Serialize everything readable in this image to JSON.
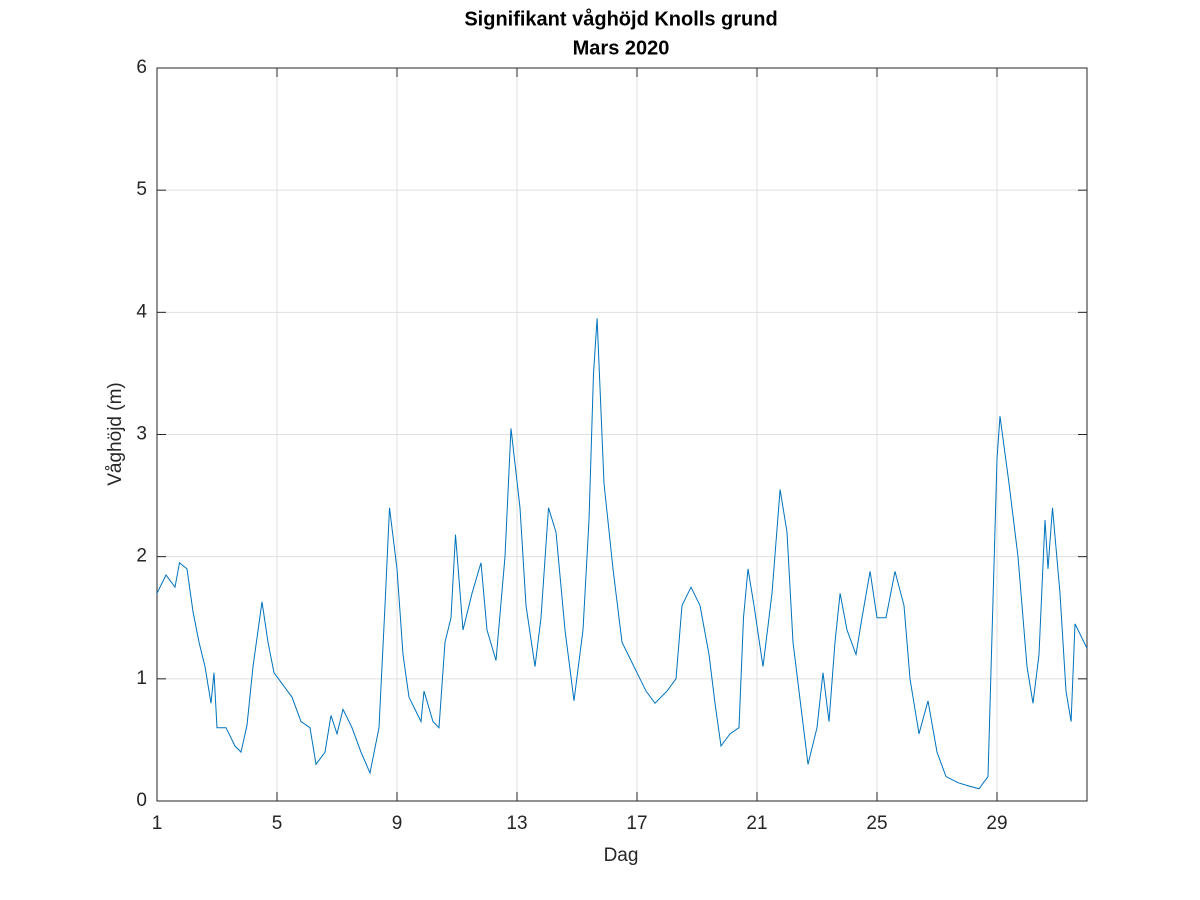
{
  "chart_data": {
    "type": "line",
    "title": "Signifikant våghöjd Knolls grund",
    "subtitle": "Mars 2020",
    "xlabel": "Dag",
    "ylabel": "Våghöjd (m)",
    "xlim": [
      1,
      32
    ],
    "xticks": [
      1,
      5,
      9,
      13,
      17,
      21,
      25,
      29
    ],
    "ylim": [
      0,
      6
    ],
    "yticks": [
      0,
      1,
      2,
      3,
      4,
      5,
      6
    ],
    "grid": true,
    "x": [
      1.0,
      1.3,
      1.6,
      1.75,
      2.0,
      2.2,
      2.4,
      2.6,
      2.8,
      2.9,
      3.0,
      3.3,
      3.6,
      3.8,
      4.0,
      4.2,
      4.5,
      4.7,
      4.9,
      5.2,
      5.5,
      5.8,
      6.1,
      6.3,
      6.6,
      6.8,
      7.0,
      7.2,
      7.5,
      7.8,
      8.1,
      8.4,
      8.6,
      8.75,
      9.0,
      9.2,
      9.4,
      9.6,
      9.8,
      9.9,
      10.2,
      10.4,
      10.6,
      10.8,
      10.95,
      11.2,
      11.5,
      11.8,
      12.0,
      12.3,
      12.6,
      12.8,
      13.1,
      13.3,
      13.6,
      13.8,
      14.05,
      14.3,
      14.6,
      14.9,
      15.2,
      15.4,
      15.55,
      15.67,
      15.9,
      16.2,
      16.5,
      16.9,
      17.3,
      17.6,
      18.0,
      18.3,
      18.5,
      18.8,
      19.1,
      19.4,
      19.6,
      19.8,
      20.1,
      20.4,
      20.55,
      20.7,
      20.9,
      21.2,
      21.5,
      21.77,
      22.0,
      22.2,
      22.5,
      22.7,
      23.0,
      23.2,
      23.4,
      23.6,
      23.77,
      24.0,
      24.3,
      24.5,
      24.77,
      25.0,
      25.3,
      25.6,
      25.9,
      26.1,
      26.4,
      26.7,
      27.0,
      27.3,
      27.7,
      28.1,
      28.4,
      28.7,
      28.85,
      29.0,
      29.1,
      29.4,
      29.7,
      30.0,
      30.2,
      30.4,
      30.6,
      30.7,
      30.85,
      31.1,
      31.3,
      31.47,
      31.6,
      32.0
    ],
    "series": [
      {
        "color": "#0072bd",
        "values": [
          1.7,
          1.85,
          1.75,
          1.95,
          1.9,
          1.55,
          1.3,
          1.1,
          0.8,
          1.05,
          0.6,
          0.6,
          0.45,
          0.4,
          0.62,
          1.1,
          1.63,
          1.3,
          1.05,
          0.95,
          0.85,
          0.65,
          0.6,
          0.3,
          0.4,
          0.7,
          0.55,
          0.75,
          0.6,
          0.4,
          0.23,
          0.6,
          1.6,
          2.4,
          1.9,
          1.2,
          0.85,
          0.75,
          0.65,
          0.9,
          0.65,
          0.6,
          1.3,
          1.5,
          2.18,
          1.4,
          1.7,
          1.95,
          1.4,
          1.15,
          2.0,
          3.05,
          2.4,
          1.6,
          1.1,
          1.5,
          2.4,
          2.2,
          1.4,
          0.82,
          1.4,
          2.3,
          3.5,
          3.95,
          2.6,
          1.9,
          1.3,
          1.1,
          0.9,
          0.8,
          0.9,
          1.0,
          1.6,
          1.75,
          1.6,
          1.2,
          0.8,
          0.45,
          0.55,
          0.6,
          1.5,
          1.9,
          1.6,
          1.1,
          1.7,
          2.55,
          2.2,
          1.3,
          0.7,
          0.3,
          0.6,
          1.05,
          0.65,
          1.3,
          1.7,
          1.4,
          1.2,
          1.5,
          1.88,
          1.5,
          1.5,
          1.88,
          1.6,
          1.0,
          0.55,
          0.82,
          0.4,
          0.2,
          0.15,
          0.12,
          0.1,
          0.2,
          1.5,
          2.8,
          3.15,
          2.6,
          2.0,
          1.1,
          0.8,
          1.2,
          2.3,
          1.9,
          2.4,
          1.7,
          0.9,
          0.65,
          1.45,
          1.25
        ]
      }
    ]
  }
}
